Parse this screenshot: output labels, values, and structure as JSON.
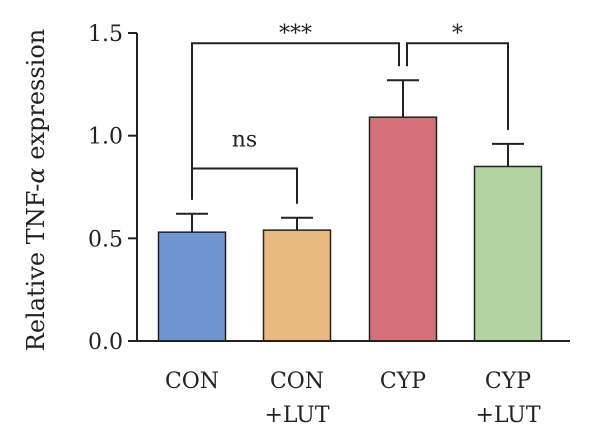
{
  "chart_data": {
    "type": "bar",
    "title": "",
    "xlabel": "",
    "ylabel_prefix": "Relative TNF-",
    "ylabel_greek": "α",
    "ylabel_suffix": " expression",
    "ylim": [
      0,
      1.5
    ],
    "yticks": [
      0.0,
      0.5,
      1.0,
      1.5
    ],
    "ytick_labels": [
      "0.0",
      "0.5",
      "1.0",
      "1.5"
    ],
    "categories": [
      {
        "line1": "CON",
        "line2": ""
      },
      {
        "line1": "CON",
        "line2": "+LUT"
      },
      {
        "line1": "CYP",
        "line2": ""
      },
      {
        "line1": "CYP",
        "line2": "+LUT"
      }
    ],
    "values": [
      0.53,
      0.54,
      1.09,
      0.85
    ],
    "errors": [
      0.09,
      0.06,
      0.18,
      0.11
    ],
    "colors": [
      "#6f96d1",
      "#e8b980",
      "#d4727a",
      "#b3d4a3"
    ],
    "significance": [
      {
        "from": 0,
        "to": 2,
        "label": "***",
        "level": 1.45
      },
      {
        "from": 2,
        "to": 3,
        "label": "*",
        "level": 1.45
      },
      {
        "from": 0,
        "to": 1,
        "label": "ns",
        "level": 0.84
      }
    ]
  }
}
